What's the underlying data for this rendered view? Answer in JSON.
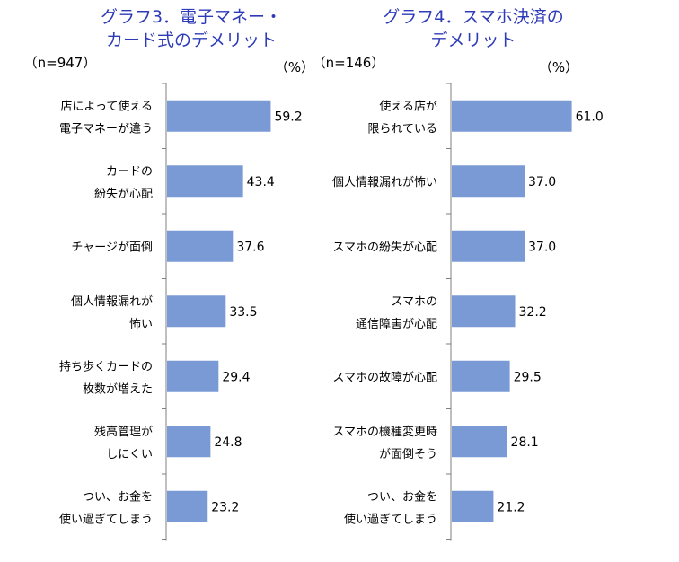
{
  "chart_data": [
    {
      "type": "bar",
      "orientation": "horizontal",
      "title_lines": [
        "グラフ3．電子マネー・",
        "カード式のデメリット"
      ],
      "sample_size": "（n=947）",
      "unit": "（%）",
      "categories": [
        [
          "店によって使える",
          "電子マネーが違う"
        ],
        [
          "カードの",
          "紛失が心配"
        ],
        [
          "チャージが面倒"
        ],
        [
          "個人情報漏れが",
          "怖い"
        ],
        [
          "持ち歩くカードの",
          "枚数が増えた"
        ],
        [
          "残高管理が",
          "しにくい"
        ],
        [
          "つい、お金を",
          "使い過ぎてしまう"
        ]
      ],
      "values": [
        59.2,
        43.4,
        37.6,
        33.5,
        29.4,
        24.8,
        23.2
      ],
      "bar_color": "#7a9ad6"
    },
    {
      "type": "bar",
      "orientation": "horizontal",
      "title_lines": [
        "グラフ4．スマホ決済の",
        "デメリット"
      ],
      "sample_size": "（n=146）",
      "unit": "（%）",
      "categories": [
        [
          "使える店が",
          "限られている"
        ],
        [
          "個人情報漏れが怖い"
        ],
        [
          "スマホの紛失が心配"
        ],
        [
          "スマホの",
          "通信障害が心配"
        ],
        [
          "スマホの故障が心配"
        ],
        [
          "スマホの機種変更時",
          "が面倒そう"
        ],
        [
          "つい、お金を",
          "使い過ぎてしまう"
        ]
      ],
      "values": [
        61.0,
        37.0,
        37.0,
        32.2,
        29.5,
        28.1,
        21.2
      ],
      "bar_color": "#7a9ad6"
    }
  ]
}
